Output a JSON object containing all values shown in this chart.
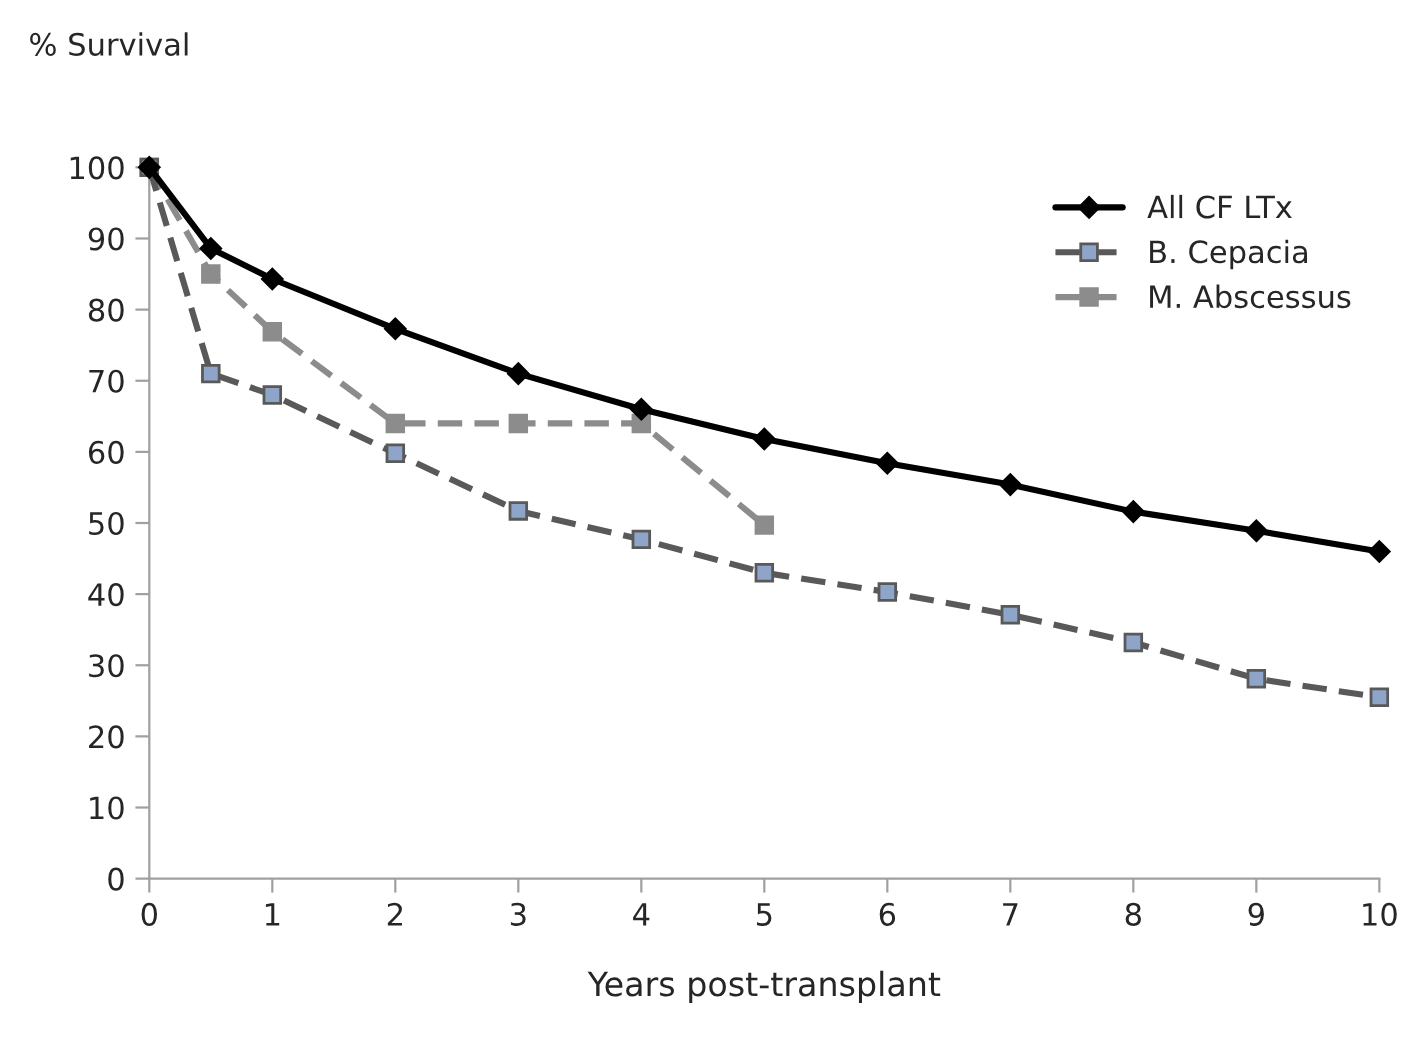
{
  "chart_data": {
    "type": "line",
    "ylabel": "% Survival",
    "xlabel": "Years post-transplant",
    "x": [
      0,
      0.5,
      1,
      2,
      3,
      4,
      5,
      6,
      7,
      8,
      9,
      10
    ],
    "series": [
      {
        "name": "All CF LTx",
        "color": "#000000",
        "marker": "diamond",
        "line_style": "solid",
        "values": [
          100,
          88.6,
          84.3,
          77.3,
          71,
          66,
          61.8,
          58.4,
          55.4,
          51.6,
          48.9,
          46
        ]
      },
      {
        "name": "B. Cepacia",
        "color": "#595959",
        "marker": "square",
        "line_style": "dashed",
        "values": [
          100,
          71,
          68,
          59.8,
          51.7,
          47.7,
          43,
          40.3,
          37.1,
          33.2,
          28.1,
          25.5
        ]
      },
      {
        "name": "M. Abscessus",
        "color": "#8c8c8c",
        "marker": "square",
        "line_style": "dashed",
        "values": [
          100,
          85,
          76.9,
          64,
          64,
          64,
          49.7,
          null,
          null,
          null,
          null,
          null
        ]
      }
    ],
    "xlim": [
      0,
      10
    ],
    "xticks": [
      0,
      1,
      2,
      3,
      4,
      5,
      6,
      7,
      8,
      9,
      10
    ],
    "ylim": [
      0,
      100
    ],
    "yticks": [
      0,
      10,
      20,
      30,
      40,
      50,
      60,
      70,
      80,
      90,
      100
    ],
    "grid": false,
    "legend": "top right"
  }
}
